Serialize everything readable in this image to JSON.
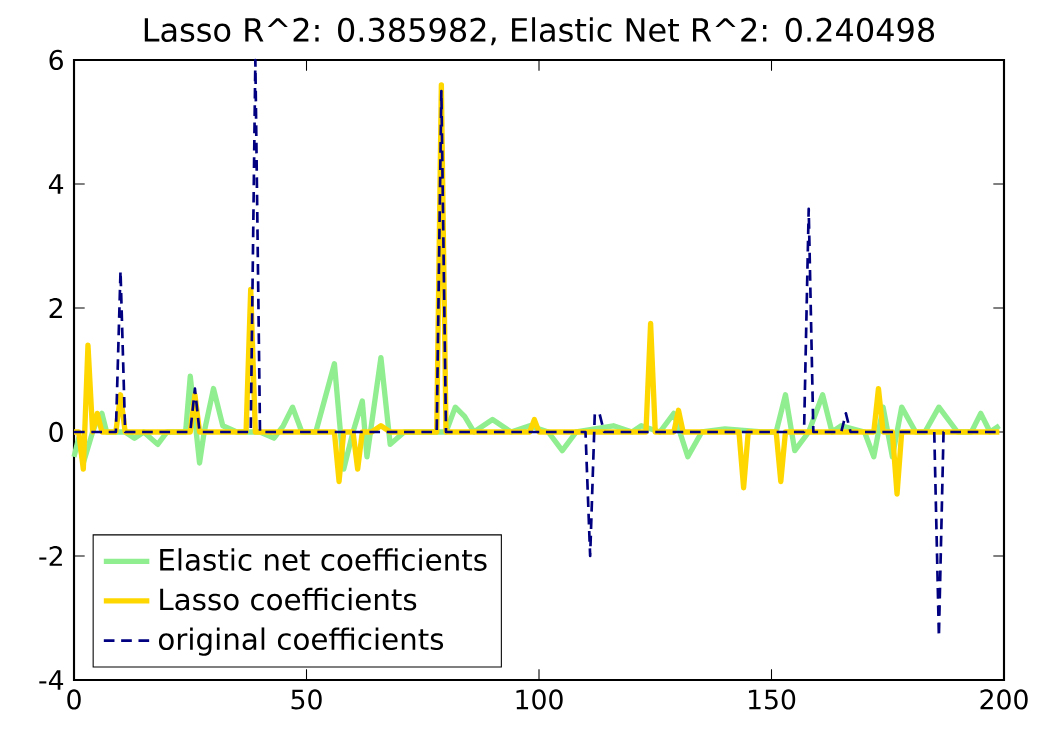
{
  "chart_data": {
    "type": "line",
    "title": "Lasso R^2: 0.385982, Elastic Net R^2: 0.240498",
    "xlim": [
      0,
      200
    ],
    "xticks": [
      0,
      50,
      100,
      150,
      200
    ],
    "ylim": [
      -4,
      6
    ],
    "yticks": [
      -4,
      -2,
      0,
      2,
      4,
      6
    ],
    "legend": "bottom left",
    "marker": "none",
    "series": [
      {
        "name": "Elastic net coefficients",
        "color": "#90ee90",
        "line_style": "solid",
        "x": [
          0,
          1,
          2,
          3,
          4,
          5,
          6,
          7,
          8,
          10,
          11,
          13,
          15,
          18,
          20,
          24,
          25,
          27,
          28,
          30,
          32,
          35,
          37,
          38,
          40,
          43,
          45,
          47,
          49,
          52,
          56,
          58,
          60,
          62,
          63,
          66,
          68,
          71,
          78,
          79,
          80,
          82,
          84,
          86,
          90,
          94,
          98,
          102,
          105,
          108,
          116,
          120,
          122,
          126,
          129,
          132,
          135,
          140,
          148,
          151,
          153,
          155,
          158,
          161,
          163,
          165,
          170,
          172,
          174,
          176,
          178,
          181,
          183,
          186,
          190,
          193,
          195,
          197,
          199
        ],
        "values": [
          -0.4,
          -0.1,
          -0.5,
          null,
          0,
          0.2,
          0.3,
          0,
          0,
          null,
          0,
          -0.1,
          0,
          -0.2,
          0,
          0,
          0.9,
          -0.5,
          0,
          0.7,
          0.1,
          0,
          0,
          null,
          0,
          -0.1,
          0.1,
          0.4,
          0,
          0,
          1.1,
          -0.6,
          0,
          0.5,
          -0.4,
          1.2,
          -0.2,
          0,
          0,
          null,
          0,
          0.4,
          0.25,
          0,
          0.2,
          0,
          0.1,
          0,
          -0.3,
          0,
          0.1,
          0,
          0.1,
          0,
          0.3,
          -0.4,
          0,
          0.05,
          0,
          0,
          0.6,
          -0.3,
          0,
          0.6,
          0,
          0.1,
          0,
          -0.4,
          0.4,
          -0.4,
          0.4,
          0,
          0,
          0.4,
          0,
          0,
          0.3,
          0,
          0.1
        ]
      },
      {
        "name": "Lasso coefficients",
        "color": "#ffd700",
        "line_style": "solid",
        "x": [
          0,
          1,
          2,
          3,
          4,
          5,
          6,
          8,
          9,
          10,
          11,
          24,
          25,
          26,
          27,
          36,
          37,
          38,
          39,
          40,
          55,
          56,
          57,
          58,
          60,
          61,
          62,
          64,
          66,
          68,
          77,
          78,
          79,
          80,
          81,
          97,
          98,
          99,
          100,
          122,
          123,
          124,
          125,
          126,
          129,
          130,
          131,
          142,
          143,
          144,
          145,
          150,
          151,
          152,
          153,
          171,
          172,
          173,
          174,
          175,
          176,
          177,
          178,
          199
        ],
        "values": [
          0,
          0,
          -0.6,
          1.4,
          0,
          0.3,
          0,
          0,
          0,
          0.6,
          0,
          0,
          0,
          0.6,
          0,
          0,
          0,
          2.3,
          0,
          0,
          0,
          0,
          -0.8,
          0,
          0,
          -0.6,
          0,
          0,
          0.1,
          0,
          0,
          0,
          5.6,
          0,
          0,
          0,
          0,
          0.2,
          0,
          0,
          0,
          1.75,
          0,
          0,
          0,
          0.35,
          0,
          0,
          0,
          -0.9,
          0,
          0,
          0,
          -0.8,
          0,
          0,
          0,
          0.7,
          0,
          0,
          0,
          -1.0,
          0,
          0
        ]
      },
      {
        "name": "original coefficients",
        "color": "#000080",
        "line_style": "dashed",
        "x": [
          0,
          9,
          10,
          11,
          25,
          26,
          27,
          38,
          39,
          40,
          78,
          79,
          80,
          110,
          111,
          112,
          113,
          114,
          157,
          158,
          159,
          165,
          166,
          167,
          185,
          186,
          187,
          199
        ],
        "values": [
          0,
          0,
          2.6,
          0,
          0,
          0.7,
          0,
          0,
          6,
          0,
          0,
          5.5,
          0,
          0,
          -2.0,
          0.3,
          0.3,
          0,
          0,
          3.6,
          0,
          0,
          0.3,
          0,
          0,
          -3.3,
          0,
          0
        ]
      }
    ]
  }
}
